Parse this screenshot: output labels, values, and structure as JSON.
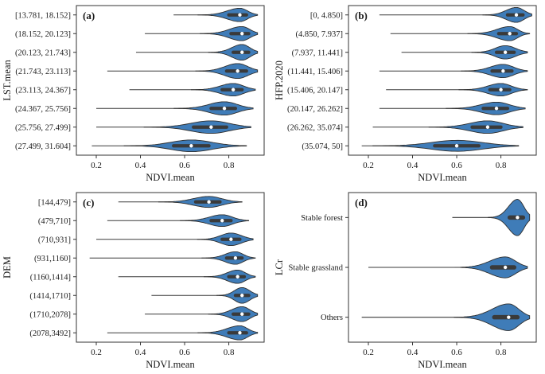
{
  "figure": {
    "xlabel": "NDVI.mean",
    "xlim": [
      0.11,
      0.96
    ],
    "xticks": [
      0.2,
      0.4,
      0.6,
      0.8
    ],
    "colors": {
      "violin_fill": "#3f7cb8",
      "violin_stroke": "#2f2f2f",
      "box": "#3a3a3a",
      "median_dot": "#ffffff",
      "axis": "#333333"
    }
  },
  "chart_data": [
    {
      "type": "violin",
      "panel_label": "(a)",
      "ylabel": "LST.mean",
      "xlabel": "NDVI.mean",
      "categories": [
        "[13.781, 18.152]",
        "(18.152, 20.123]",
        "(20.123, 21.743]",
        "(21.743, 23.113]",
        "(23.113, 24.367]",
        "(24.367, 25.756]",
        "(25.756, 27.499]",
        "(27.499, 31.604]"
      ],
      "stats": [
        {
          "min": 0.55,
          "q1": 0.8,
          "median": 0.85,
          "q3": 0.88,
          "max": 0.93,
          "amp": 0.85
        },
        {
          "min": 0.42,
          "q1": 0.81,
          "median": 0.86,
          "q3": 0.89,
          "max": 0.93,
          "amp": 0.9
        },
        {
          "min": 0.38,
          "q1": 0.82,
          "median": 0.86,
          "q3": 0.89,
          "max": 0.93,
          "amp": 1.0
        },
        {
          "min": 0.25,
          "q1": 0.79,
          "median": 0.84,
          "q3": 0.88,
          "max": 0.93,
          "amp": 0.95
        },
        {
          "min": 0.35,
          "q1": 0.77,
          "median": 0.82,
          "q3": 0.86,
          "max": 0.92,
          "amp": 0.8
        },
        {
          "min": 0.2,
          "q1": 0.72,
          "median": 0.78,
          "q3": 0.83,
          "max": 0.91,
          "amp": 0.85
        },
        {
          "min": 0.2,
          "q1": 0.64,
          "median": 0.72,
          "q3": 0.79,
          "max": 0.9,
          "amp": 0.8
        },
        {
          "min": 0.18,
          "q1": 0.55,
          "median": 0.63,
          "q3": 0.71,
          "max": 0.88,
          "amp": 0.75
        }
      ]
    },
    {
      "type": "violin",
      "panel_label": "(b)",
      "ylabel": "HFP.2020",
      "xlabel": "NDVI.mean",
      "categories": [
        "[0, 4.850]",
        "(4.850, 7.937]",
        "(7.937, 11.441]",
        "(11.441, 15.406]",
        "(15.406, 20.147]",
        "(20.147, 26.262]",
        "(26.262, 35.074]",
        "(35.074, 50]"
      ],
      "stats": [
        {
          "min": 0.25,
          "q1": 0.83,
          "median": 0.87,
          "q3": 0.9,
          "max": 0.94,
          "amp": 0.95
        },
        {
          "min": 0.3,
          "q1": 0.79,
          "median": 0.84,
          "q3": 0.87,
          "max": 0.93,
          "amp": 0.9
        },
        {
          "min": 0.35,
          "q1": 0.78,
          "median": 0.82,
          "q3": 0.86,
          "max": 0.92,
          "amp": 0.85
        },
        {
          "min": 0.25,
          "q1": 0.76,
          "median": 0.81,
          "q3": 0.85,
          "max": 0.92,
          "amp": 0.85
        },
        {
          "min": 0.28,
          "q1": 0.75,
          "median": 0.8,
          "q3": 0.84,
          "max": 0.92,
          "amp": 0.8
        },
        {
          "min": 0.25,
          "q1": 0.72,
          "median": 0.78,
          "q3": 0.83,
          "max": 0.91,
          "amp": 0.8
        },
        {
          "min": 0.22,
          "q1": 0.67,
          "median": 0.74,
          "q3": 0.8,
          "max": 0.9,
          "amp": 0.8
        },
        {
          "min": 0.17,
          "q1": 0.5,
          "median": 0.6,
          "q3": 0.7,
          "max": 0.88,
          "amp": 0.7
        }
      ]
    },
    {
      "type": "violin",
      "panel_label": "(c)",
      "ylabel": "DEM",
      "xlabel": "NDVI.mean",
      "categories": [
        "[144,479]",
        "(479,710]",
        "(710,931]",
        "(931,1160]",
        "(1160,1414]",
        "(1414,1710]",
        "(1710,2078]",
        "(2078,3492]"
      ],
      "stats": [
        {
          "min": 0.3,
          "q1": 0.65,
          "median": 0.71,
          "q3": 0.76,
          "max": 0.86,
          "amp": 0.7
        },
        {
          "min": 0.25,
          "q1": 0.72,
          "median": 0.77,
          "q3": 0.81,
          "max": 0.89,
          "amp": 0.75
        },
        {
          "min": 0.2,
          "q1": 0.77,
          "median": 0.81,
          "q3": 0.85,
          "max": 0.91,
          "amp": 0.8
        },
        {
          "min": 0.17,
          "q1": 0.79,
          "median": 0.83,
          "q3": 0.86,
          "max": 0.92,
          "amp": 0.8
        },
        {
          "min": 0.3,
          "q1": 0.8,
          "median": 0.84,
          "q3": 0.87,
          "max": 0.92,
          "amp": 0.85
        },
        {
          "min": 0.45,
          "q1": 0.83,
          "median": 0.86,
          "q3": 0.89,
          "max": 0.93,
          "amp": 1.0
        },
        {
          "min": 0.42,
          "q1": 0.82,
          "median": 0.86,
          "q3": 0.89,
          "max": 0.93,
          "amp": 0.95
        },
        {
          "min": 0.25,
          "q1": 0.8,
          "median": 0.85,
          "q3": 0.88,
          "max": 0.93,
          "amp": 0.9
        }
      ]
    },
    {
      "type": "violin",
      "panel_label": "(d)",
      "ylabel": "LCr",
      "xlabel": "NDVI.mean",
      "categories": [
        "Stable forest",
        "Stable grassland",
        "Others"
      ],
      "stats": [
        {
          "min": 0.58,
          "q1": 0.84,
          "median": 0.875,
          "q3": 0.9,
          "max": 0.93,
          "amp": 0.95
        },
        {
          "min": 0.2,
          "q1": 0.76,
          "median": 0.82,
          "q3": 0.86,
          "max": 0.92,
          "amp": 0.55
        },
        {
          "min": 0.17,
          "q1": 0.77,
          "median": 0.835,
          "q3": 0.875,
          "max": 0.93,
          "amp": 0.7
        }
      ]
    }
  ]
}
